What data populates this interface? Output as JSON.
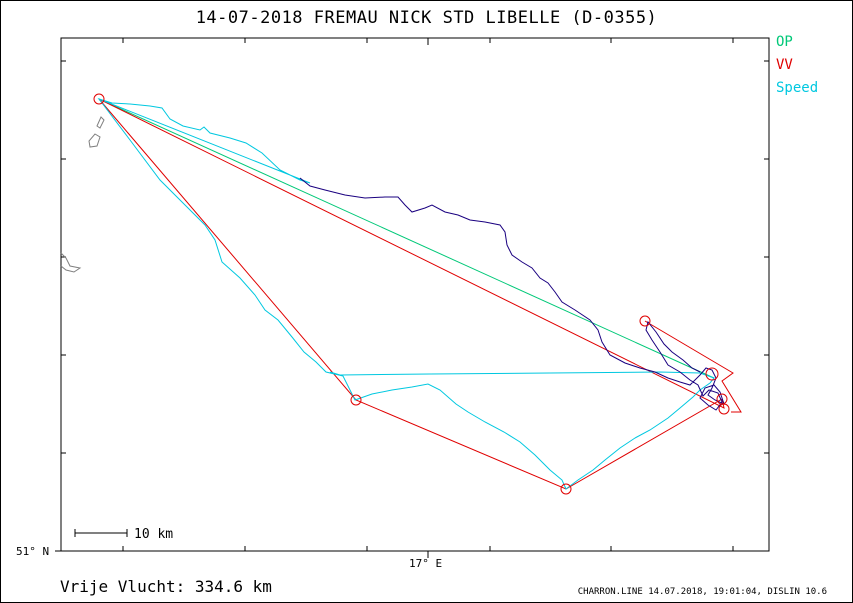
{
  "title": "14-07-2018   FREMAU NICK   STD LIBELLE (D-0355)",
  "legend": [
    {
      "label": "OP",
      "color": "#00c878"
    },
    {
      "label": "VV",
      "color": "#e00000"
    },
    {
      "label": "Speed",
      "color": "#00c8e0"
    }
  ],
  "distance_text": "Vrije Vlucht:  334.6 km",
  "footer_text": "CHARRON.LINE 14.07.2018, 19:01:04, DISLIN 10.6",
  "scale_label": "10 km",
  "axis_labels": {
    "lat": "51° N",
    "lon": "17° E"
  },
  "colors": {
    "op": "#00c878",
    "vv": "#e00000",
    "speed": "#00c8e0",
    "track": "#1a0080",
    "map": "#808080"
  },
  "chart_data": {
    "type": "line",
    "title": "14-07-2018   FREMAU NICK   STD LIBELLE (D-0355)",
    "x_tick_labels": [
      "17° E"
    ],
    "y_tick_labels": [
      "51° N"
    ],
    "series": [
      {
        "name": "OP"
      },
      {
        "name": "VV"
      },
      {
        "name": "Speed"
      }
    ]
  }
}
